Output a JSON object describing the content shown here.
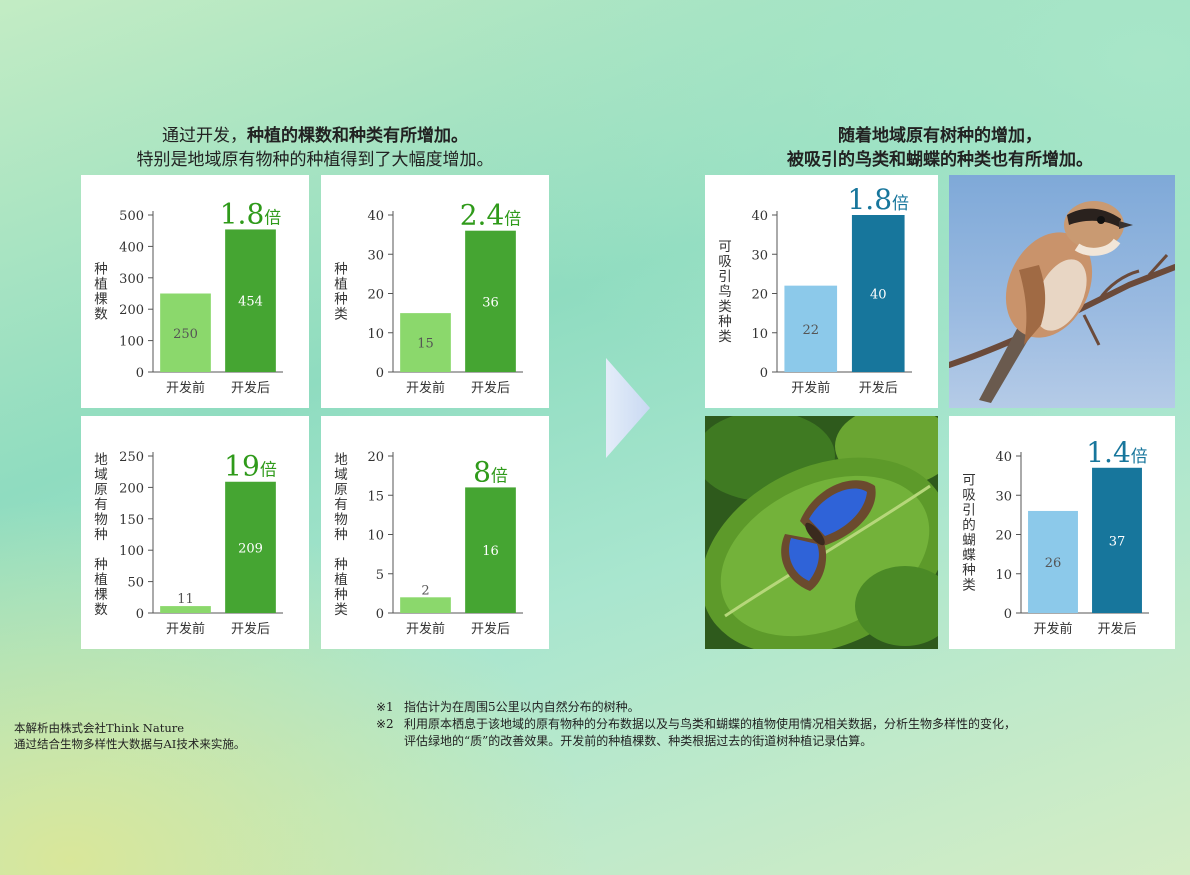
{
  "left_heading": {
    "line1_prefix": "通过开发，",
    "line1_bold": "种植的棵数和种类有所增加。",
    "line2": "特别是地域原有物种的种植得到了大幅度增加。"
  },
  "right_heading": {
    "line1": "随着地域原有树种的增加，",
    "line2": "被吸引的鸟类和蝴蝶的种类也有所增加。"
  },
  "colors": {
    "green_light": "#8bd86c",
    "green_dark": "#45a532",
    "blue_light": "#8cc9ea",
    "blue_dark": "#17769c",
    "green_label": "#2f9a1a",
    "blue_label": "#17769c"
  },
  "chart_data": [
    {
      "type": "bar",
      "categories": [
        "开发前",
        "开发后"
      ],
      "values": [
        250,
        454
      ],
      "ylabel": "种植棵数",
      "ylim": [
        0,
        500
      ],
      "yticks": [
        "0",
        "100",
        "200",
        "300",
        "400",
        "500"
      ],
      "multiplier": "1.8",
      "multiplier_unit": "倍",
      "value_labels": [
        "250",
        "454"
      ]
    },
    {
      "type": "bar",
      "categories": [
        "开发前",
        "开发后"
      ],
      "values": [
        15,
        36
      ],
      "ylabel": "种植种类",
      "ylim": [
        0,
        40
      ],
      "yticks": [
        "0",
        "10",
        "20",
        "30",
        "40"
      ],
      "multiplier": "2.4",
      "multiplier_unit": "倍",
      "value_labels": [
        "15",
        "36"
      ]
    },
    {
      "type": "bar",
      "categories": [
        "开发前",
        "开发后"
      ],
      "values": [
        11,
        209
      ],
      "ylabel": "地域原有物种 种植棵数",
      "ylim": [
        0,
        250
      ],
      "yticks": [
        "0",
        "50",
        "100",
        "150",
        "200",
        "250"
      ],
      "multiplier": "19",
      "multiplier_unit": "倍",
      "value_labels": [
        "11",
        "209"
      ]
    },
    {
      "type": "bar",
      "categories": [
        "开发前",
        "开发后"
      ],
      "values": [
        2,
        16
      ],
      "ylabel": "地域原有物种 种植种类",
      "ylim": [
        0,
        20
      ],
      "yticks": [
        "0",
        "5",
        "10",
        "15",
        "20"
      ],
      "multiplier": "8",
      "multiplier_unit": "倍",
      "value_labels": [
        "2",
        "16"
      ]
    },
    {
      "type": "bar",
      "categories": [
        "开发前",
        "开发后"
      ],
      "values": [
        22,
        40
      ],
      "ylabel": "可吸引鸟类种类",
      "ylim": [
        0,
        40
      ],
      "yticks": [
        "0",
        "10",
        "20",
        "30",
        "40"
      ],
      "multiplier": "1.8",
      "multiplier_unit": "倍",
      "value_labels": [
        "22",
        "40"
      ]
    },
    {
      "type": "bar",
      "categories": [
        "开发前",
        "开发后"
      ],
      "values": [
        26,
        37
      ],
      "ylabel": "可吸引的蝴蝶种类",
      "ylim": [
        0,
        40
      ],
      "yticks": [
        "0",
        "10",
        "20",
        "30",
        "40"
      ],
      "multiplier": "1.4",
      "multiplier_unit": "倍",
      "value_labels": [
        "26",
        "37"
      ]
    }
  ],
  "footer": {
    "credit_line1": "本解析由株式会社Think Nature",
    "credit_line2": "通过结合生物多样性大数据与AI技术来实施。",
    "note1_mark": "※1",
    "note1_text": "指估计为在周围5公里以内自然分布的树种。",
    "note2_mark": "※2",
    "note2_line1": "利用原本栖息于该地域的原有物种的分布数据以及与鸟类和蝴蝶的植物使用情况相关数据，分析生物多样性的变化，",
    "note2_line2": "评估绿地的“质”的改善效果。开发前的种植棵数、种类根据过去的街道树种植记录估算。"
  }
}
